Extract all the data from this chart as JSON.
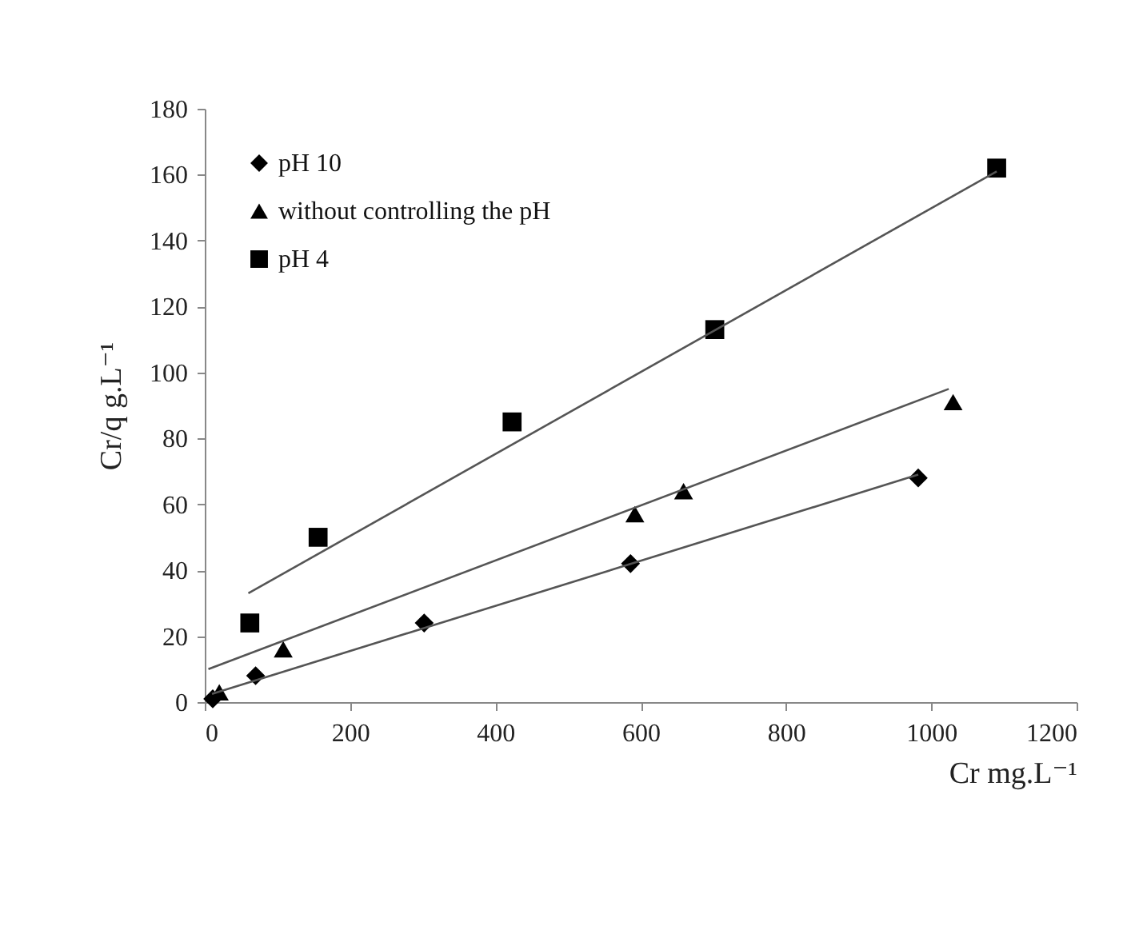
{
  "chart_data": {
    "type": "scatter",
    "xlabel": "Cr mg.L⁻¹",
    "ylabel": "Cr/q g.L⁻¹",
    "xlim": [
      0,
      1200
    ],
    "xticks": [
      0,
      200,
      400,
      600,
      800,
      1000,
      1200
    ],
    "ylim": [
      0,
      180
    ],
    "yticks": [
      0,
      20,
      40,
      60,
      80,
      100,
      120,
      140,
      160,
      180
    ],
    "grid": false,
    "legend": "top left",
    "series": [
      {
        "name": "pH 10",
        "color": "#000000",
        "marker": "diamond",
        "x": [
          11,
          70,
          302,
          586,
          982
        ],
        "values": [
          1,
          8,
          24,
          42,
          68
        ]
      },
      {
        "name": "without controlling the pH",
        "color": "#000000",
        "marker": "triangle",
        "x": [
          20,
          108,
          592,
          659,
          1030
        ],
        "values": [
          3,
          16,
          57,
          64,
          91
        ]
      },
      {
        "name": "pH 4",
        "color": "#000000",
        "marker": "square",
        "x": [
          62,
          156,
          423,
          702,
          1090
        ],
        "values": [
          24,
          50,
          85,
          113,
          162
        ]
      },
      {
        "type": "line",
        "color": "#555555",
        "x": [
          10,
          982
        ],
        "values": [
          2.5,
          69
        ]
      },
      {
        "type": "line",
        "color": "#555555",
        "x": [
          5,
          1024
        ],
        "values": [
          10,
          95
        ]
      },
      {
        "type": "line",
        "color": "#555555",
        "x": [
          60,
          1090
        ],
        "values": [
          33,
          161
        ]
      }
    ]
  }
}
